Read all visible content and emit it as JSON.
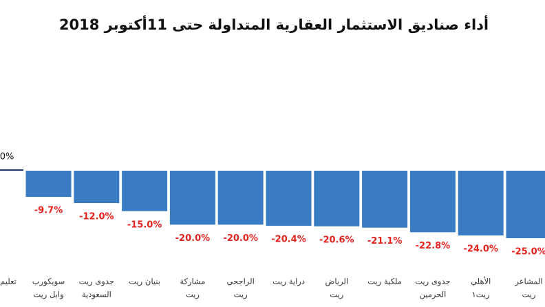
{
  "chart_data": {
    "type": "bar",
    "title": "أداء صناديق الاستثمار العقارية المتداولة حتى 11أكتوبر 2018",
    "categories": [
      [
        "تعليم"
      ],
      [
        "سويكورب",
        "وابل ريت"
      ],
      [
        "جدوى ريت",
        "السعودية"
      ],
      [
        "بنيان ريت"
      ],
      [
        "مشاركة",
        "ريت"
      ],
      [
        "الراجحي",
        "ريت"
      ],
      [
        "دراية ريت"
      ],
      [
        "الرياض",
        "ريت"
      ],
      [
        "ملكية ريت"
      ],
      [
        "جدوى ريت",
        "الحرمين"
      ],
      [
        "الأهلي",
        "ريت١"
      ],
      [
        "المشاعر",
        "ريت"
      ]
    ],
    "values": [
      0,
      -9.7,
      -12.0,
      -15.0,
      -20.0,
      -20.0,
      -20.4,
      -20.6,
      -21.1,
      -22.8,
      -24.0,
      -25.0
    ],
    "value_labels": [
      "0%",
      "-9.7%",
      "-12.0%",
      "-15.0%",
      "-20.0%",
      "-20.0%",
      "-20.4%",
      "-20.6%",
      "-21.1%",
      "-22.8%",
      "-24.0%",
      "-25.0%"
    ],
    "color": "#3a7cc3"
  }
}
